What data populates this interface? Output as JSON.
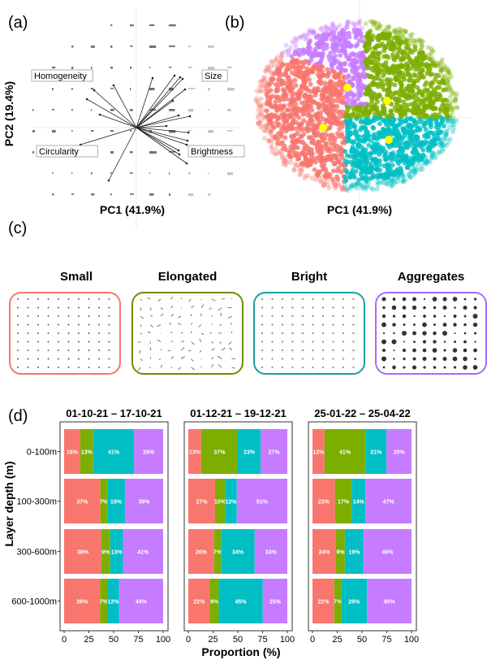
{
  "panel_labels": {
    "a": "(a)",
    "b": "(b)",
    "c": "(c)",
    "d": "(d)"
  },
  "panel_a": {
    "xlabel": "PC1 (41.9%)",
    "ylabel": "PC2 (19.4%)",
    "variable_labels": [
      "Homogeneity",
      "Size",
      "Circularity",
      "Brightness"
    ]
  },
  "panel_b": {
    "xlabel": "PC1 (41.9%)",
    "cluster_colors": [
      "#F8766D",
      "#C77CFF",
      "#7CAE00",
      "#00BFC4"
    ],
    "centroid_color": "#FFFF00"
  },
  "panel_c": {
    "groups": [
      {
        "title": "Small",
        "color": "#F8766D"
      },
      {
        "title": "Elongated",
        "color": "#6B8E00"
      },
      {
        "title": "Bright",
        "color": "#1A9FA3"
      },
      {
        "title": "Aggregates",
        "color": "#A66BFF"
      }
    ]
  },
  "chart_data": {
    "type": "bar",
    "orientation": "horizontal-stacked",
    "xlabel": "Proportion (%)",
    "ylabel": "Layer depth (m)",
    "xlim": [
      0,
      100
    ],
    "xticks": [
      "0",
      "25",
      "50",
      "75",
      "100"
    ],
    "categories": [
      "0-100m",
      "100-300m",
      "300-600m",
      "600-1000m"
    ],
    "series_colors": [
      "#F8766D",
      "#7CAE00",
      "#00BFC4",
      "#C77CFF"
    ],
    "facets": [
      {
        "title": "01-10-21 – 17-10-21",
        "values": [
          [
            16,
            13,
            41,
            29
          ],
          [
            37,
            7,
            18,
            39
          ],
          [
            38,
            9,
            13,
            41
          ],
          [
            36,
            7,
            12,
            44
          ]
        ]
      },
      {
        "title": "01-12-21 – 19-12-21",
        "values": [
          [
            13,
            37,
            23,
            27
          ],
          [
            27,
            10,
            12,
            51
          ],
          [
            26,
            7,
            34,
            33
          ],
          [
            22,
            9,
            45,
            25
          ]
        ]
      },
      {
        "title": "25-01-22 – 25-04-22",
        "values": [
          [
            12,
            41,
            21,
            25
          ],
          [
            23,
            17,
            14,
            47
          ],
          [
            24,
            9,
            19,
            49
          ],
          [
            22,
            7,
            26,
            45
          ]
        ]
      }
    ]
  }
}
